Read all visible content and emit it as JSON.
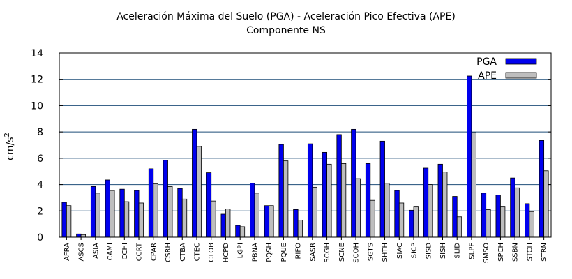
{
  "chart_data": {
    "type": "bar",
    "title": "Aceleración Máxima del Suelo (PGA) -  Aceleración Pico Efectiva (APE)",
    "subtitle": "Componente NS",
    "xlabel": "",
    "ylabel": "cm/s",
    "ylabel_superscript": "2",
    "ylim": [
      0,
      14
    ],
    "yticks": [
      0,
      2,
      4,
      6,
      8,
      10,
      12,
      14
    ],
    "grid": true,
    "legend_position": "top-right",
    "categories": [
      "AFRA",
      "ASCS",
      "ASIA",
      "CAMI",
      "CCHI",
      "CCRT",
      "CPAR",
      "CSRH",
      "CTBA",
      "CTEC",
      "CTOB",
      "HCPD",
      "LGPI",
      "PBNA",
      "PQSH",
      "PQUE",
      "RIFO",
      "SASR",
      "SCGH",
      "SCNE",
      "SCOH",
      "SGTS",
      "SHTH",
      "SIAC",
      "SICP",
      "SISD",
      "SISH",
      "SLID",
      "SLPF",
      "SMSO",
      "SPCH",
      "SSBN",
      "STCH",
      "STRN"
    ],
    "series": [
      {
        "name": "PGA",
        "color": "#0000ee",
        "values": [
          2.65,
          0.25,
          3.85,
          4.35,
          3.65,
          3.55,
          5.2,
          5.85,
          3.7,
          8.2,
          4.9,
          1.75,
          0.9,
          4.1,
          2.4,
          7.05,
          2.1,
          7.1,
          6.45,
          7.8,
          8.2,
          5.6,
          7.3,
          3.55,
          2.05,
          5.25,
          5.55,
          3.1,
          12.25,
          3.35,
          3.2,
          4.5,
          2.55,
          7.35
        ]
      },
      {
        "name": "APE",
        "color": "#bebebe",
        "values": [
          2.4,
          0.2,
          3.35,
          3.55,
          2.7,
          2.6,
          4.05,
          3.85,
          2.9,
          6.9,
          2.75,
          2.15,
          0.8,
          3.35,
          2.4,
          5.8,
          1.3,
          3.8,
          5.55,
          5.6,
          4.45,
          2.8,
          4.1,
          2.6,
          2.3,
          4.0,
          4.95,
          1.55,
          7.95,
          2.1,
          2.3,
          3.75,
          1.95,
          5.05
        ]
      }
    ]
  }
}
